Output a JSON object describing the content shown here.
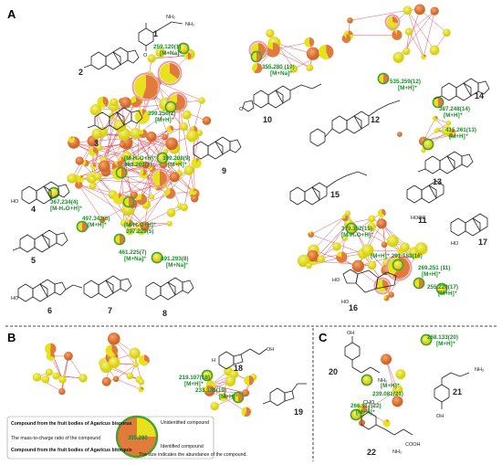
{
  "panels": {
    "a": "A",
    "b": "B",
    "c": "C"
  },
  "compounds": {
    "c1": "1",
    "c2": "2",
    "c3": "3",
    "c4": "4",
    "c5": "5",
    "c6": "6",
    "c7": "7",
    "c8": "8",
    "c9": "9",
    "c10": "10",
    "c11": "11",
    "c12": "12",
    "c13": "13",
    "c14": "14",
    "c15": "15",
    "c16": "16",
    "c17": "17",
    "c18": "18",
    "c19": "19",
    "c20": "20",
    "c21": "21",
    "c22": "22"
  },
  "ions": {
    "i1": {
      "mz": "259.120(1)",
      "adduct": "[M+Na]⁺"
    },
    "i2": {
      "mz": "399.250(2)",
      "adduct": "[M+H]⁺"
    },
    "i3": {
      "mz": "383.203(3)",
      "adduct": "[M-H₂O+H]⁺"
    },
    "i4": {
      "mz": "367.234(4)",
      "adduct": "[M-H₂O+H]⁺"
    },
    "i5": {
      "mz": "397.229(5)",
      "adduct": "[M-H₂O+H]⁺"
    },
    "i6": {
      "mz": "497.343(6)",
      "adduct": "[M+H]⁺"
    },
    "i7": {
      "mz": "461.225(7)",
      "adduct": "[M+Na]⁺"
    },
    "i8": {
      "mz": "491.293(8)",
      "adduct": "[M+Na]⁺"
    },
    "i9": {
      "mz": "399.208(9)",
      "adduct": "[M+H]⁺"
    },
    "i10": {
      "mz": "355.280 (10)",
      "adduct": "[M+Na]⁺"
    },
    "i12": {
      "mz": "535.359(12)",
      "adduct": "[M+H]⁺"
    },
    "i13": {
      "mz": "415.261(13)",
      "adduct": "[M+H]⁺"
    },
    "i14": {
      "mz": "387.248(14)",
      "adduct": "[M+H]⁺"
    },
    "i15": {
      "mz": "379.352(15)",
      "adduct": "[M-H₂O+H]⁺"
    },
    "i16": {
      "mz": "[M+H]⁺ 291.183(16)",
      "adduct": ""
    },
    "i11": {
      "mz": "269.251 (11)",
      "adduct": "[M+H]⁺"
    },
    "i17": {
      "mz": "255.229(17)",
      "adduct": "[M+H]⁺"
    },
    "i18": {
      "mz": "219.107(18)",
      "adduct": "[M+H]⁺"
    },
    "i19": {
      "mz": "233.135(19)",
      "adduct": "[M+H]⁺"
    },
    "i20": {
      "mz": "268.133(20)",
      "adduct": "[M+H]⁺"
    },
    "i21": {
      "mz": "239.081(21)",
      "adduct": "[M+H]⁺"
    },
    "i22": {
      "mz": "266.117(22)",
      "adduct": "[M+H]⁺"
    }
  },
  "chem_labels": {
    "nh2": "NH₂",
    "o": "O",
    "oh": "OH",
    "ho": "HO",
    "h": "H",
    "cooh": "COOH",
    "hooc": "HOOC",
    "cho": "CHO"
  },
  "legend": {
    "fruit_bodies_bisporus": "Compound  from the fruit bodies of Agaricus bisporus",
    "mz_ratio": "The mass-to-charge ratio of the compound",
    "fruit_bodies_bitorquis": "Compound from the fruit bodies of Agaricus bitorquis",
    "sample_mz": "355.280",
    "unidentified": "Unidentified compound",
    "identified": "Identified compound",
    "size_note": "The size indicates the abundance of the compound."
  },
  "colors": {
    "yellow": "#e8e21e",
    "orange": "#e07b3c",
    "pink": "#e8a0a8",
    "edge": "#d84a5a",
    "ion": "#1a8a2a",
    "ring": "#4aa02c"
  }
}
